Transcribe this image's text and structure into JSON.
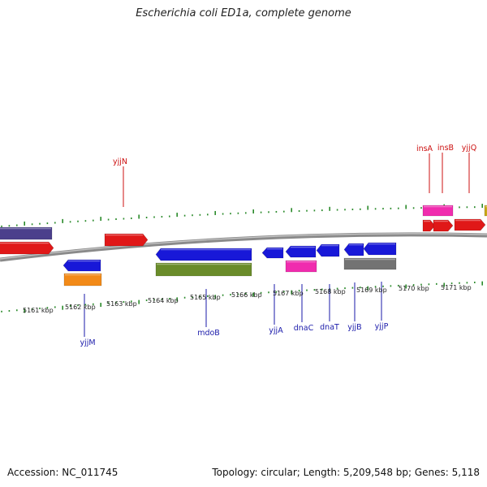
{
  "title": "Escherichia coli ED1a, complete genome",
  "footer": {
    "accession": "Accession: NC_011745",
    "topology": "Topology: circular; Length: 5,209,548 bp; Genes: 5,118"
  },
  "colors": {
    "backbone": "#8a8a8a",
    "tick": "#2a8a2a",
    "label_top": "#cc1111",
    "label_bottom": "#1a1aaa"
  },
  "scale": {
    "unit": "kbp",
    "labels": [
      "5161 kbp",
      "5162 kbp",
      "5163 kbp",
      "5164 kbp",
      "5165 kbp",
      "5166 kbp",
      "5167 kbp",
      "5168 kbp",
      "5169 kbp",
      "5170 kbp",
      "5171 kbp"
    ]
  },
  "gene_labels_top": [
    "yjjN",
    "insA",
    "insB",
    "yjjQ"
  ],
  "gene_labels_bottom": [
    "yjjM",
    "mdoB",
    "yjjA",
    "dnaC",
    "dnaT",
    "yjjB",
    "yjjP"
  ]
}
